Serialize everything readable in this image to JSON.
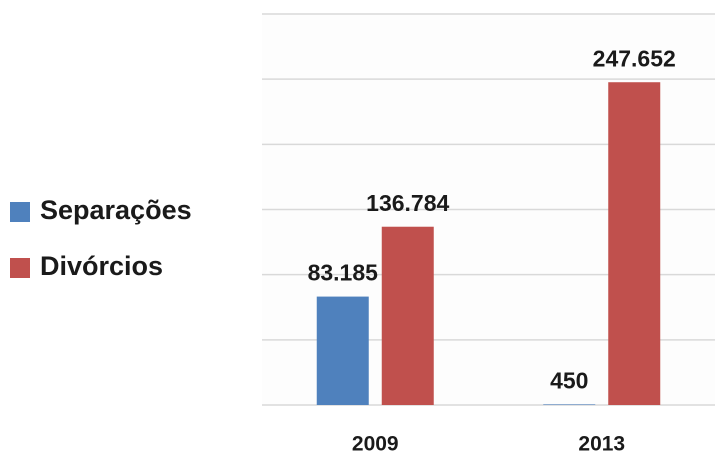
{
  "chart_data": {
    "type": "bar",
    "categories": [
      "2009",
      "2013"
    ],
    "series": [
      {
        "name": "Separações",
        "color": "#4f81bd",
        "values": [
          83185,
          450
        ],
        "value_labels": [
          "83.185",
          "450"
        ]
      },
      {
        "name": "Divórcios",
        "color": "#c0504d",
        "values": [
          136784,
          247652
        ],
        "value_labels": [
          "136.784",
          "247.652"
        ]
      }
    ],
    "ylim": [
      0,
      300000
    ],
    "yticks": [
      0,
      50000,
      100000,
      150000,
      200000,
      250000,
      300000
    ],
    "grid": true,
    "legend": "left"
  }
}
